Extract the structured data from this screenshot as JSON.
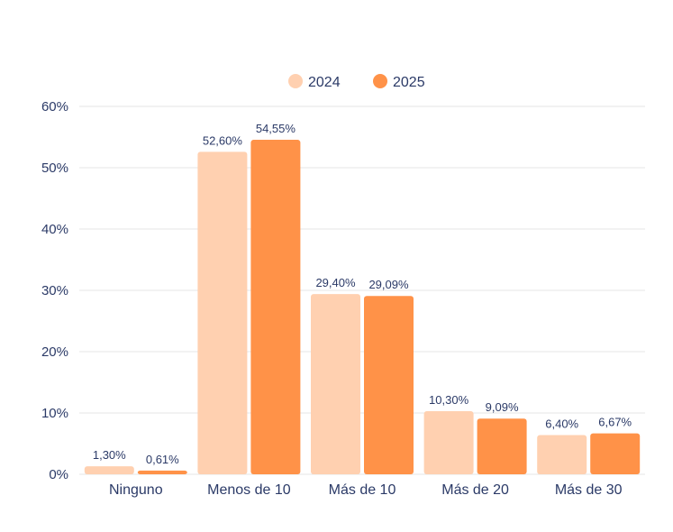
{
  "chart_data": {
    "type": "bar",
    "categories": [
      "Ninguno",
      "Menos de 10",
      "Más de 10",
      "Más de 20",
      "Más de 30"
    ],
    "series": [
      {
        "name": "2024",
        "color": "#ffd0b0",
        "values": [
          1.3,
          52.6,
          29.4,
          10.3,
          6.4
        ],
        "labels": [
          "1,30%",
          "52,60%",
          "29,40%",
          "10,30%",
          "6,40%"
        ]
      },
      {
        "name": "2025",
        "color": "#ff9248",
        "values": [
          0.61,
          54.55,
          29.09,
          9.09,
          6.67
        ],
        "labels": [
          "0,61%",
          "54,55%",
          "29,09%",
          "9,09%",
          "6,67%"
        ]
      }
    ],
    "ylim": [
      0,
      60
    ],
    "yticks": [
      0,
      10,
      20,
      30,
      40,
      50,
      60
    ],
    "ytick_labels": [
      "0%",
      "10%",
      "20%",
      "30%",
      "40%",
      "50%",
      "60%"
    ],
    "grid": true,
    "legend_position": "top-center",
    "title": "",
    "xlabel": "",
    "ylabel": ""
  }
}
